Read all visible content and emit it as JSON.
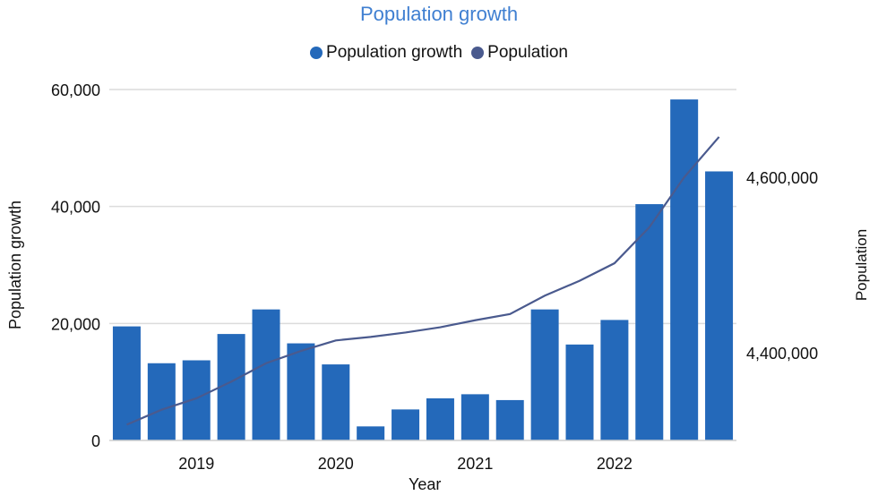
{
  "chart_data": {
    "type": "bar+line",
    "title": "Population growth",
    "xlabel": "Year",
    "ylabel_left": "Population growth",
    "ylabel_right": "Population",
    "x_tick_labels": [
      {
        "index": 2,
        "label": "2019"
      },
      {
        "index": 6,
        "label": "2020"
      },
      {
        "index": 10,
        "label": "2021"
      },
      {
        "index": 14,
        "label": "2022"
      }
    ],
    "left_axis": {
      "ylim": [
        0,
        60000
      ],
      "ticks": [
        0,
        20000,
        40000,
        60000
      ],
      "tick_labels": [
        "0",
        "20,000",
        "40,000",
        "60,000"
      ]
    },
    "right_axis": {
      "ylim": [
        4300000,
        4700000
      ],
      "ticks": [
        4400000,
        4600000
      ],
      "tick_labels": [
        "4,400,000",
        "4,600,000"
      ]
    },
    "grid": true,
    "legend_position": "top",
    "series": [
      {
        "name": "Population growth",
        "type": "bar",
        "axis": "left",
        "color": "#2469ba",
        "values": [
          19500,
          13200,
          13700,
          18200,
          22400,
          16600,
          13000,
          2400,
          5300,
          7200,
          7900,
          6900,
          22400,
          16400,
          20600,
          40400,
          58300,
          46000
        ]
      },
      {
        "name": "Population",
        "type": "line",
        "axis": "right",
        "color": "#4a5a8e",
        "values": [
          4318000,
          4335000,
          4348000,
          4367000,
          4388000,
          4402000,
          4414000,
          4418000,
          4423000,
          4429000,
          4437000,
          4444000,
          4465000,
          4482000,
          4502000,
          4543000,
          4600000,
          4646000
        ]
      }
    ]
  }
}
